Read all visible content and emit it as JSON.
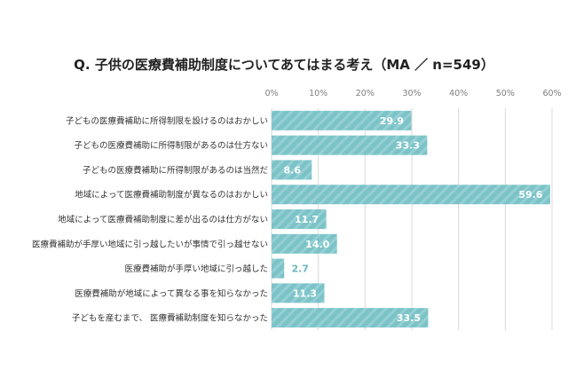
{
  "chart_data": {
    "type": "bar",
    "orientation": "horizontal",
    "title": "Q. 子供の医療費補助制度についてあてはまる考え（MA ／ n=549）",
    "xlabel": "",
    "ylabel": "",
    "xlim": [
      0,
      60
    ],
    "ticks": [
      "0%",
      "10%",
      "20%",
      "30%",
      "40%",
      "50%",
      "60%"
    ],
    "grid": true,
    "legend": "none",
    "categories": [
      "子どもの医療費補助に所得制限を設けるのはおかしい",
      "子どもの医療費補助に所得制限があるのは仕方ない",
      "子どもの医療費補助に所得制限があるのは当然だ",
      "地域によって医療費補助制度が異なるのはおかしい",
      "地域によって医療費補助制度に差が出るのは仕方がない",
      "医療費補助が手厚い地域に引っ越したいが事情で引っ越せない",
      "医療費補助が手厚い地域に引っ越した",
      "医療費補助が地域によって異なる事を知らなかった",
      "子どもを産むまで、 医療費補助制度を知らなかった"
    ],
    "values": [
      29.9,
      33.3,
      8.6,
      59.6,
      11.7,
      14.0,
      2.7,
      11.3,
      33.5
    ],
    "value_labels": [
      "29.9",
      "33.3",
      "8.6",
      "59.6",
      "11.7",
      "14.0",
      "2.7",
      "11.3",
      "33.5"
    ],
    "colors": {
      "bar": "#7cc3c8",
      "bar_stripe": "#95d0d4",
      "label_inside": "#ffffff",
      "label_outside": "#6bb8be",
      "grid": "#d9d9d9"
    }
  }
}
